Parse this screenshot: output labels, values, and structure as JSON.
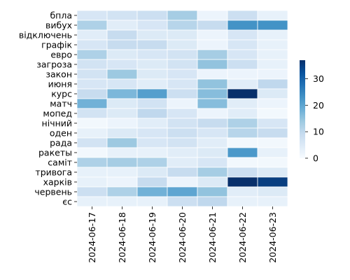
{
  "chart_data": {
    "type": "heatmap",
    "x_categories": [
      "2024-06-17",
      "2024-06-18",
      "2024-06-19",
      "2024-06-20",
      "2024-06-21",
      "2024-06-22",
      "2024-06-23"
    ],
    "y_categories": [
      "бпла",
      "вибух",
      "відключень",
      "графік",
      "евро",
      "загроза",
      "закон",
      "июня",
      "курс",
      "матч",
      "мопед",
      "нічний",
      "оден",
      "рада",
      "ракеты",
      "саміт",
      "тривога",
      "харків",
      "червень",
      "єс"
    ],
    "values": [
      [
        6,
        7,
        8,
        13,
        2,
        8,
        3
      ],
      [
        12,
        4,
        6,
        11,
        9,
        23,
        23
      ],
      [
        4,
        9,
        5,
        5,
        2,
        6,
        3
      ],
      [
        6,
        9,
        9,
        5,
        2,
        6,
        3
      ],
      [
        12,
        5,
        6,
        7,
        13,
        6,
        3
      ],
      [
        7,
        6,
        5,
        7,
        15,
        8,
        3
      ],
      [
        7,
        14,
        5,
        6,
        2,
        2,
        2
      ],
      [
        6,
        6,
        4,
        6,
        15,
        4,
        10
      ],
      [
        9,
        17,
        21,
        8,
        16,
        37,
        5
      ],
      [
        18,
        5,
        7,
        2,
        16,
        4,
        2
      ],
      [
        7,
        5,
        10,
        6,
        2,
        4,
        1
      ],
      [
        1,
        2,
        4,
        7,
        9,
        12,
        6
      ],
      [
        3,
        5,
        6,
        8,
        6,
        11,
        9
      ],
      [
        7,
        14,
        6,
        7,
        4,
        1,
        1
      ],
      [
        1,
        3,
        3,
        4,
        5,
        22,
        3
      ],
      [
        12,
        13,
        12,
        4,
        6,
        1,
        1
      ],
      [
        3,
        3,
        5,
        9,
        13,
        8,
        5
      ],
      [
        3,
        2,
        9,
        2,
        5,
        37,
        35
      ],
      [
        8,
        12,
        18,
        20,
        15,
        4,
        5
      ],
      [
        3,
        3,
        3,
        8,
        10,
        3,
        3
      ]
    ],
    "colorbar": {
      "min": 0,
      "max": 37,
      "ticks": [
        0,
        10,
        20,
        30
      ]
    },
    "colormap": [
      "#f7fbff",
      "#deebf7",
      "#c6dbef",
      "#9ecae1",
      "#6baed6",
      "#4292c6",
      "#2171b5",
      "#08519c",
      "#08306b"
    ],
    "cell_border_color": "#ffffff"
  }
}
